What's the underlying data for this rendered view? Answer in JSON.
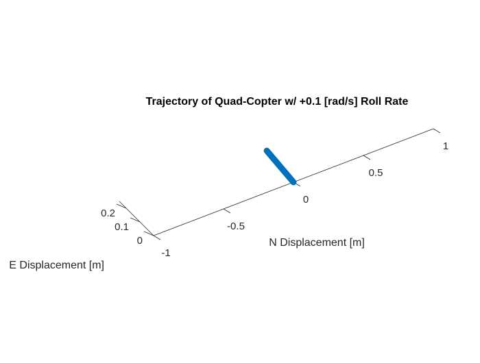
{
  "chart_data": {
    "type": "line",
    "projection": "3d",
    "title": "Trajectory of Quad-Copter w/ +0.1 [rad/s] Roll Rate",
    "xlabel": "N Displacement [m]",
    "ylabel": "E Displacement [m]",
    "zlabel": "",
    "xlim": [
      -1,
      1
    ],
    "ylim": [
      0,
      0.25
    ],
    "x_ticks": [
      -1,
      -0.5,
      0,
      0.5,
      1
    ],
    "x_tick_labels": [
      "-1",
      "-0.5",
      "0",
      "0.5",
      "1"
    ],
    "y_ticks": [
      0,
      0.1,
      0.2
    ],
    "y_tick_labels": [
      "0",
      "0.1",
      "0.2"
    ],
    "grid": false,
    "series": [
      {
        "color": "#0072bd",
        "x": [
          0,
          0.005,
          0.01,
          0.015,
          0.02,
          0.025
        ],
        "y": [
          0,
          0.045,
          0.09,
          0.135,
          0.18,
          0.22
        ]
      }
    ]
  }
}
